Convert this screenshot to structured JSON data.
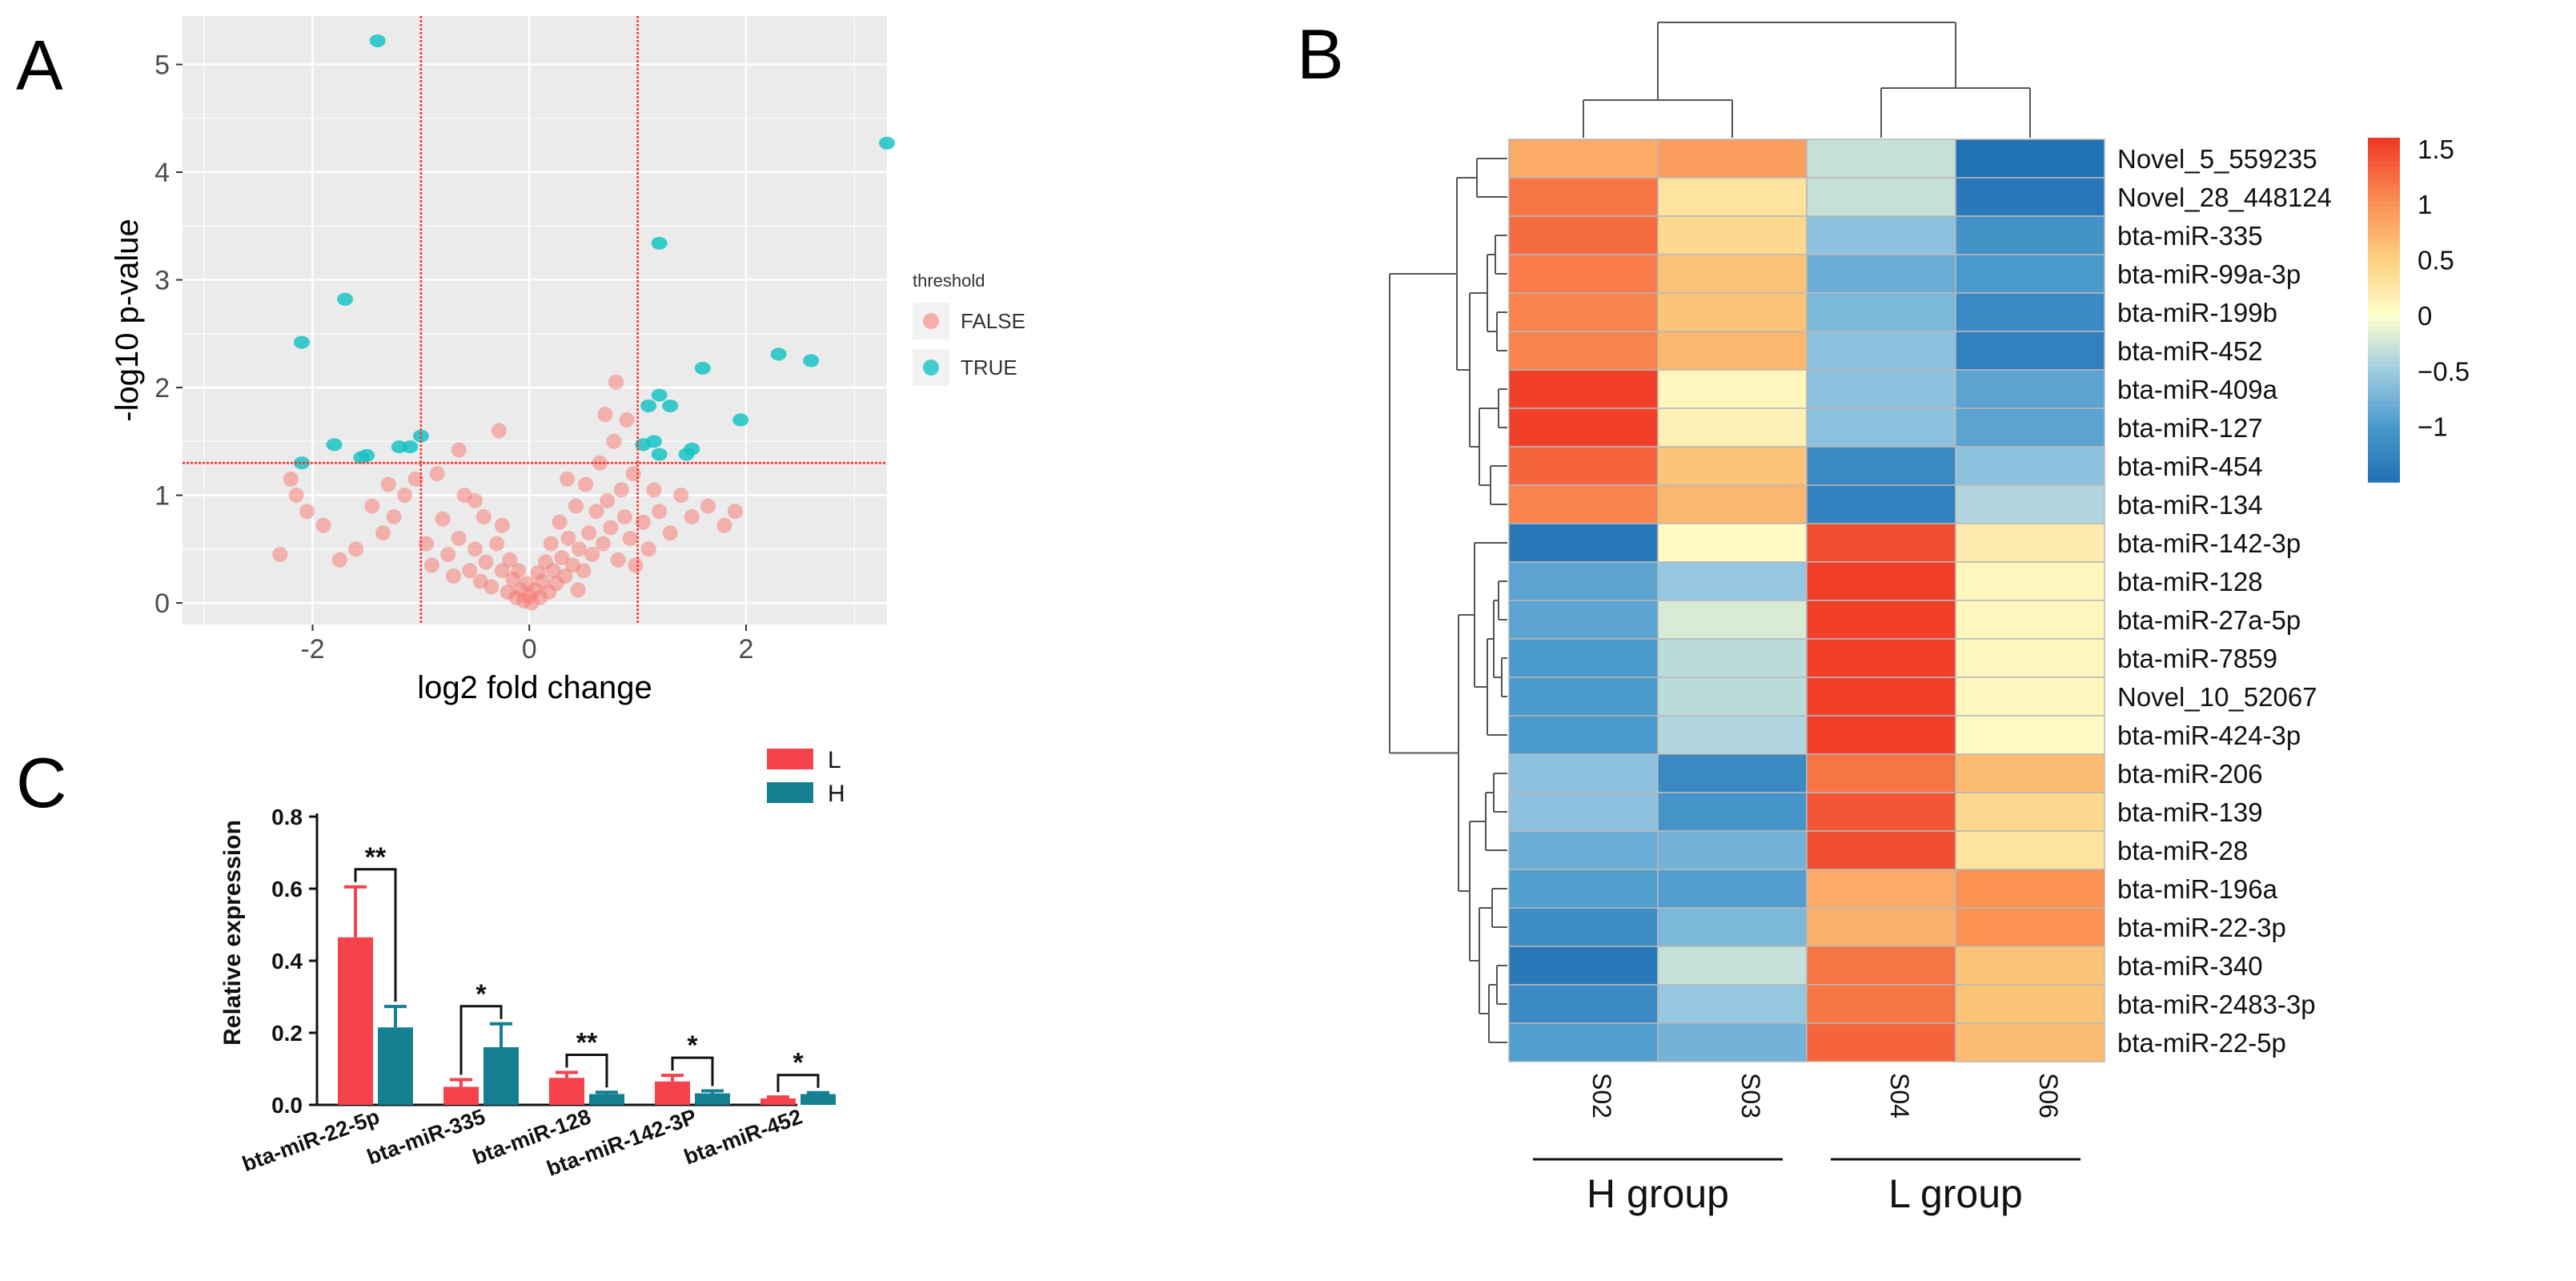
{
  "chart_data": [
    {
      "panel": "A",
      "type": "scatter",
      "title": "",
      "xlabel": "log2 fold change",
      "ylabel": "-log10 p-value",
      "xlim": [
        -3.2,
        3.3
      ],
      "ylim": [
        -0.2,
        5.45
      ],
      "xticks": [
        -2,
        0,
        2
      ],
      "xtick_labels": [
        "-2",
        "0",
        "2"
      ],
      "yticks": [
        0,
        1,
        2,
        3,
        4,
        5
      ],
      "ytick_labels": [
        "0",
        "1",
        "2",
        "3",
        "4",
        "5"
      ],
      "grid": true,
      "thresholds": {
        "x": [
          -1,
          1
        ],
        "y": 1.3
      },
      "legend": {
        "title": "threshold",
        "entries": [
          "FALSE",
          "TRUE"
        ],
        "position": "right"
      },
      "series": [
        {
          "name": "TRUE",
          "color": "#19c3c4",
          "points": [
            [
              -1.4,
              5.22
            ],
            [
              3.3,
              4.27
            ],
            [
              1.2,
              3.34
            ],
            [
              -1.7,
              2.82
            ],
            [
              -2.1,
              2.42
            ],
            [
              2.3,
              2.31
            ],
            [
              2.6,
              2.25
            ],
            [
              1.6,
              2.18
            ],
            [
              1.2,
              1.93
            ],
            [
              1.3,
              1.83
            ],
            [
              1.95,
              1.7
            ],
            [
              1.1,
              1.83
            ],
            [
              1.15,
              1.5
            ],
            [
              -1.0,
              1.55
            ],
            [
              -1.1,
              1.45
            ],
            [
              -1.5,
              1.37
            ],
            [
              -1.55,
              1.35
            ],
            [
              1.5,
              1.43
            ],
            [
              1.2,
              1.38
            ],
            [
              1.45,
              1.38
            ],
            [
              -1.8,
              1.47
            ],
            [
              -2.1,
              1.3
            ],
            [
              -1.2,
              1.45
            ],
            [
              1.05,
              1.47
            ]
          ]
        },
        {
          "name": "FALSE",
          "color": "#f8766d",
          "points": [
            [
              -2.3,
              0.45
            ],
            [
              -2.15,
              1.0
            ],
            [
              -2.05,
              0.85
            ],
            [
              -1.9,
              0.72
            ],
            [
              -1.75,
              0.4
            ],
            [
              -1.6,
              0.5
            ],
            [
              -1.45,
              0.9
            ],
            [
              -1.35,
              0.65
            ],
            [
              -1.25,
              0.8
            ],
            [
              -1.15,
              1.0
            ],
            [
              -1.05,
              1.15
            ],
            [
              -0.95,
              0.55
            ],
            [
              -0.9,
              0.35
            ],
            [
              -0.85,
              1.2
            ],
            [
              -0.8,
              0.78
            ],
            [
              -0.75,
              0.45
            ],
            [
              -0.7,
              0.25
            ],
            [
              -0.65,
              0.6
            ],
            [
              -0.6,
              1.0
            ],
            [
              -0.55,
              0.3
            ],
            [
              -0.5,
              0.5
            ],
            [
              -0.45,
              0.2
            ],
            [
              -0.42,
              0.8
            ],
            [
              -0.4,
              0.38
            ],
            [
              -0.35,
              0.15
            ],
            [
              -0.3,
              0.55
            ],
            [
              -0.28,
              1.6
            ],
            [
              -0.25,
              0.3
            ],
            [
              -0.2,
              0.1
            ],
            [
              -0.18,
              0.4
            ],
            [
              -0.15,
              0.22
            ],
            [
              -0.12,
              0.05
            ],
            [
              -0.1,
              0.3
            ],
            [
              -0.08,
              0.12
            ],
            [
              -0.05,
              0.02
            ],
            [
              -0.02,
              0.18
            ],
            [
              0.0,
              0.06
            ],
            [
              0.02,
              0.0
            ],
            [
              0.05,
              0.12
            ],
            [
              0.08,
              0.28
            ],
            [
              0.1,
              0.05
            ],
            [
              0.12,
              0.2
            ],
            [
              0.15,
              0.38
            ],
            [
              0.18,
              0.1
            ],
            [
              0.2,
              0.55
            ],
            [
              0.22,
              0.3
            ],
            [
              0.25,
              0.18
            ],
            [
              0.28,
              0.75
            ],
            [
              0.3,
              0.42
            ],
            [
              0.33,
              0.25
            ],
            [
              0.36,
              0.6
            ],
            [
              0.4,
              0.35
            ],
            [
              0.43,
              0.9
            ],
            [
              0.46,
              0.5
            ],
            [
              0.5,
              0.3
            ],
            [
              0.52,
              1.1
            ],
            [
              0.55,
              0.65
            ],
            [
              0.58,
              0.45
            ],
            [
              0.62,
              0.85
            ],
            [
              0.65,
              1.3
            ],
            [
              0.68,
              0.55
            ],
            [
              0.72,
              0.95
            ],
            [
              0.75,
              0.7
            ],
            [
              0.78,
              1.5
            ],
            [
              0.82,
              0.4
            ],
            [
              0.85,
              1.05
            ],
            [
              0.88,
              0.8
            ],
            [
              0.9,
              1.7
            ],
            [
              0.93,
              0.6
            ],
            [
              0.96,
              1.2
            ],
            [
              0.8,
              2.05
            ],
            [
              0.98,
              0.35
            ],
            [
              1.05,
              0.75
            ],
            [
              1.1,
              0.5
            ],
            [
              1.15,
              1.05
            ],
            [
              1.2,
              0.85
            ],
            [
              1.3,
              0.65
            ],
            [
              1.4,
              1.0
            ],
            [
              1.5,
              0.8
            ],
            [
              1.65,
              0.9
            ],
            [
              1.8,
              0.72
            ],
            [
              1.9,
              0.85
            ],
            [
              -2.2,
              1.15
            ],
            [
              -1.3,
              1.1
            ],
            [
              -0.65,
              1.42
            ],
            [
              0.35,
              1.15
            ],
            [
              0.7,
              1.75
            ],
            [
              -0.5,
              0.95
            ],
            [
              0.45,
              0.12
            ],
            [
              -0.25,
              0.72
            ]
          ]
        }
      ]
    },
    {
      "panel": "B",
      "type": "heatmap",
      "columns": [
        "S02",
        "S03",
        "S04",
        "S06"
      ],
      "rows": [
        "Novel_5_559235",
        "Novel_28_448124",
        "bta-miR-335",
        "bta-miR-99a-3p",
        "bta-miR-199b",
        "bta-miR-452",
        "bta-miR-409a",
        "bta-miR-127",
        "bta-miR-454",
        "bta-miR-134",
        "bta-miR-142-3p",
        "bta-miR-128",
        "bta-miR-27a-5p",
        "bta-miR-7859",
        "Novel_10_52067",
        "bta-miR-424-3p",
        "bta-miR-206",
        "bta-miR-139",
        "bta-miR-28",
        "bta-miR-196a",
        "bta-miR-22-3p",
        "bta-miR-340",
        "bta-miR-2483-3p",
        "bta-miR-22-5p"
      ],
      "values": [
        [
          0.8,
          0.9,
          -0.3,
          -1.5
        ],
        [
          1.2,
          0.3,
          -0.3,
          -1.4
        ],
        [
          1.25,
          0.4,
          -0.6,
          -1.1
        ],
        [
          1.15,
          0.6,
          -0.8,
          -1.0
        ],
        [
          1.1,
          0.6,
          -0.7,
          -1.2
        ],
        [
          1.1,
          0.7,
          -0.6,
          -1.3
        ],
        [
          1.55,
          0.1,
          -0.6,
          -0.9
        ],
        [
          1.55,
          0.15,
          -0.6,
          -0.9
        ],
        [
          1.3,
          0.6,
          -1.2,
          -0.6
        ],
        [
          1.1,
          0.7,
          -1.3,
          -0.4
        ],
        [
          -1.4,
          0.05,
          1.45,
          0.2
        ],
        [
          -0.9,
          -0.55,
          1.55,
          0.1
        ],
        [
          -0.9,
          -0.2,
          1.55,
          0.1
        ],
        [
          -1.0,
          -0.35,
          1.55,
          0.1
        ],
        [
          -1.0,
          -0.35,
          1.55,
          0.1
        ],
        [
          -1.0,
          -0.4,
          1.55,
          0.05
        ],
        [
          -0.6,
          -1.2,
          1.2,
          0.65
        ],
        [
          -0.6,
          -1.05,
          1.4,
          0.4
        ],
        [
          -0.8,
          -0.75,
          1.45,
          0.3
        ],
        [
          -0.95,
          -0.95,
          0.8,
          1.0
        ],
        [
          -1.15,
          -0.7,
          0.75,
          1.0
        ],
        [
          -1.4,
          -0.3,
          1.2,
          0.6
        ],
        [
          -1.2,
          -0.55,
          1.2,
          0.6
        ],
        [
          -0.95,
          -0.75,
          1.3,
          0.65
        ]
      ],
      "colorbar": {
        "range": [
          -1.5,
          1.6
        ],
        "ticks": [
          1.5,
          1,
          0.5,
          0,
          -0.5,
          -1
        ],
        "tick_labels": [
          "1.5",
          "1",
          "0.5",
          "0",
          "−0.5",
          "−1"
        ]
      },
      "groups": [
        {
          "label": "H group",
          "columns": [
            "S02",
            "S03"
          ]
        },
        {
          "label": "L group",
          "columns": [
            "S04",
            "S06"
          ]
        }
      ]
    },
    {
      "panel": "C",
      "type": "bar",
      "categories": [
        "bta-miR-22-5p",
        "bta-miR-335",
        "bta-miR-128",
        "bta-miR-142-3P",
        "bta-miR-452"
      ],
      "series": [
        {
          "name": "L",
          "color": "#f5424b",
          "values": [
            0.465,
            0.05,
            0.075,
            0.065,
            0.018
          ],
          "errors": [
            0.14,
            0.02,
            0.015,
            0.017,
            0.004
          ]
        },
        {
          "name": "H",
          "color": "#137f91",
          "values": [
            0.215,
            0.16,
            0.03,
            0.032,
            0.03
          ],
          "errors": [
            0.058,
            0.065,
            0.005,
            0.007,
            0.004
          ]
        }
      ],
      "significance": [
        "**",
        "*",
        "**",
        "*",
        "*"
      ],
      "xlabel": "",
      "ylabel": "Relative expression",
      "ylim": [
        0,
        0.8
      ],
      "yticks": [
        0,
        0.2,
        0.4,
        0.6,
        0.8
      ],
      "ytick_labels": [
        "0.0",
        "0.2",
        "0.4",
        "0.6",
        "0.8"
      ],
      "legend_position": "top-right"
    }
  ],
  "panels": {
    "a": "A",
    "b": "B",
    "c": "C"
  }
}
